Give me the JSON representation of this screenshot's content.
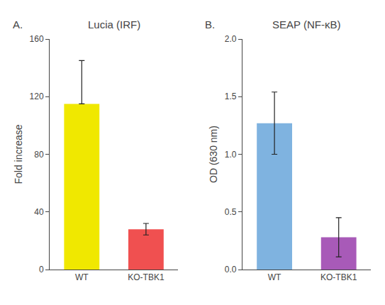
{
  "chart_data": [
    {
      "type": "bar",
      "title": "Lucia (IRF)",
      "annotations": [
        "A."
      ],
      "categories": [
        "WT",
        "KO-TBK1"
      ],
      "values": [
        115,
        28
      ],
      "errors_up": [
        30,
        4
      ],
      "errors_down": [
        0,
        4
      ],
      "colors": [
        "#f0e800",
        "#f05050"
      ],
      "ylabel": "Fold increase",
      "ylim": [
        0,
        160
      ],
      "yticks": [
        0,
        40,
        80,
        120,
        160
      ],
      "grid": false
    },
    {
      "type": "bar",
      "title": "SEAP (NF-κB)",
      "annotations": [
        "B."
      ],
      "categories": [
        "WT",
        "KO-TBK1"
      ],
      "values": [
        1.27,
        0.28
      ],
      "errors_up": [
        0.27,
        0.17
      ],
      "errors_down": [
        0.27,
        0.17
      ],
      "colors": [
        "#7fb3e0",
        "#a85ab8"
      ],
      "ylabel": "OD (630 nm)",
      "ylim": [
        0,
        2.0
      ],
      "yticks": [
        {
          "value": 0,
          "label": "0.0"
        },
        0.5,
        {
          "value": 1,
          "label": "1.0"
        },
        1.5,
        {
          "value": 2,
          "label": "2.0"
        }
      ],
      "grid": false
    }
  ]
}
